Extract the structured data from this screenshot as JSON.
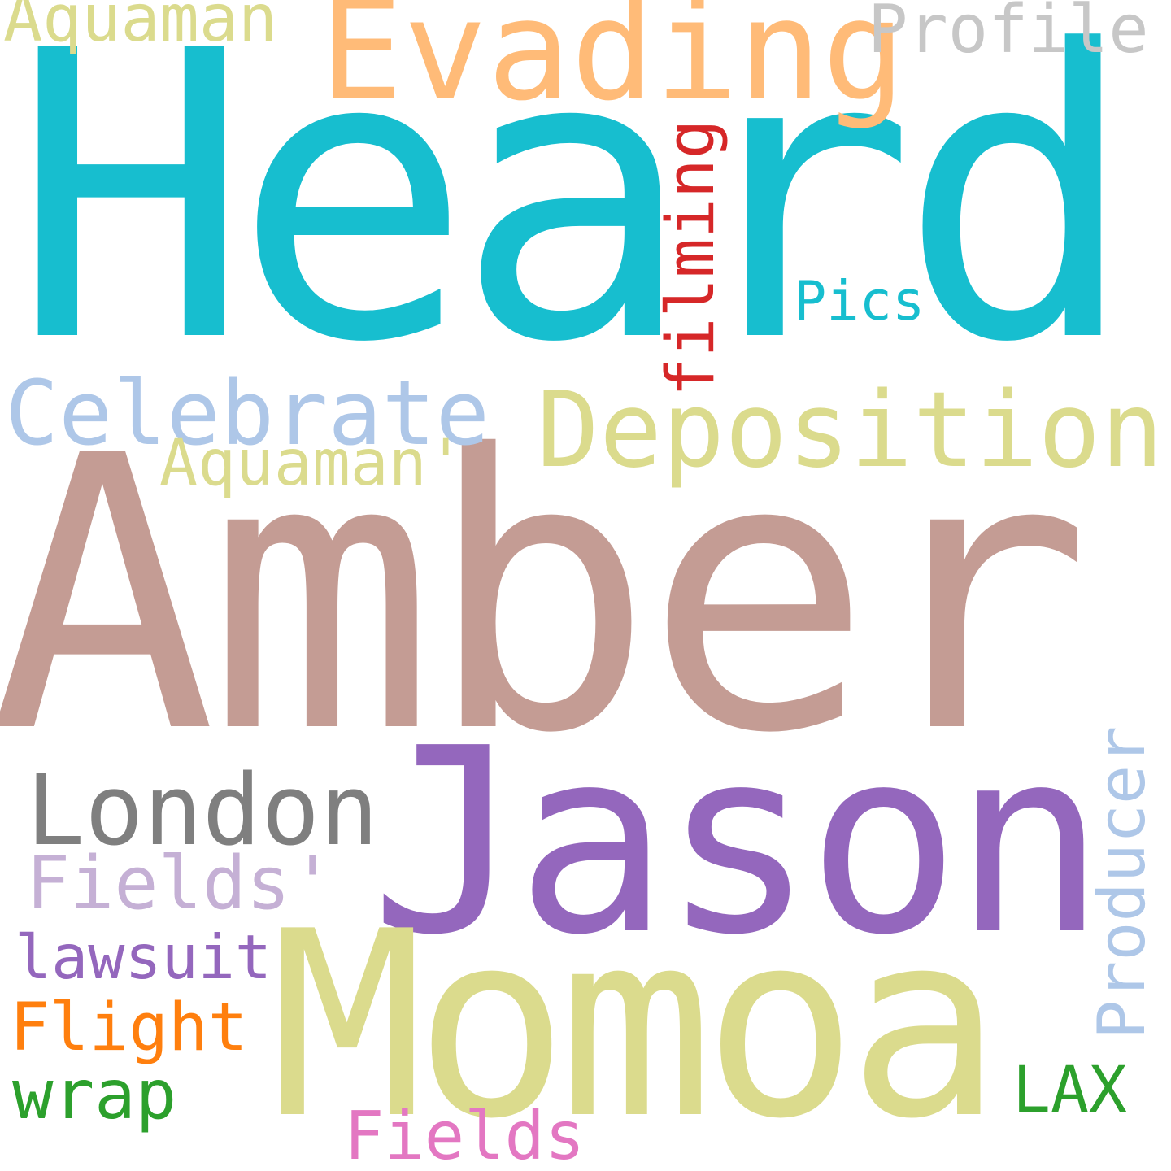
{
  "words": [
    {
      "key": "heard",
      "text": "Heard",
      "color": "#17becf"
    },
    {
      "key": "amber",
      "text": "Amber",
      "color": "#c49c94"
    },
    {
      "key": "jason",
      "text": "Jason",
      "color": "#9467bd"
    },
    {
      "key": "momoa",
      "text": "Momoa",
      "color": "#dbdb8d"
    },
    {
      "key": "evading",
      "text": "Evading",
      "color": "#ffbb78"
    },
    {
      "key": "deposition",
      "text": "Deposition",
      "color": "#dbdb8d"
    },
    {
      "key": "celebrate",
      "text": "Celebrate",
      "color": "#aec7e8"
    },
    {
      "key": "london",
      "text": "London",
      "color": "#7f7f7f"
    },
    {
      "key": "aquaman",
      "text": "Aquaman",
      "color": "#dbdb8d"
    },
    {
      "key": "profile",
      "text": "Profile",
      "color": "#c7c7c7"
    },
    {
      "key": "filming",
      "text": "filming",
      "color": "#d62728"
    },
    {
      "key": "pics",
      "text": "Pics",
      "color": "#17becf"
    },
    {
      "key": "aquaman-quote",
      "text": "Aquaman'",
      "color": "#dbdb8d"
    },
    {
      "key": "fields-quote",
      "text": "Fields'",
      "color": "#c5b0d5"
    },
    {
      "key": "producer",
      "text": "Producer",
      "color": "#aec7e8"
    },
    {
      "key": "lawsuit",
      "text": "lawsuit",
      "color": "#9467bd"
    },
    {
      "key": "flight",
      "text": "Flight",
      "color": "#ff7f0e"
    },
    {
      "key": "wrap",
      "text": "wrap",
      "color": "#2ca02c"
    },
    {
      "key": "lax",
      "text": "LAX",
      "color": "#2ca02c"
    },
    {
      "key": "fields",
      "text": "Fields",
      "color": "#e377c2"
    }
  ]
}
